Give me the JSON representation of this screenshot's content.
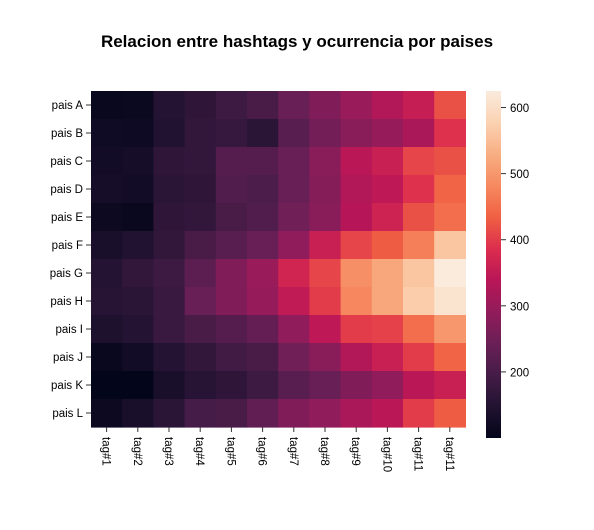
{
  "chart_data": {
    "type": "heatmap",
    "title": "Relacion entre hashtags y ocurrencia por paises",
    "rows": [
      "pais A",
      "pais B",
      "pais C",
      "pais D",
      "pais E",
      "pais F",
      "pais G",
      "pais H",
      "pais I",
      "pais J",
      "pais K",
      "pais L"
    ],
    "columns": [
      "tag#1",
      "tag#2",
      "tag#3",
      "tag#4",
      "tag#5",
      "tag#6",
      "tag#7",
      "tag#8",
      "tag#9",
      "tag#10",
      "tag#11",
      "tag#11"
    ],
    "values": [
      [
        110,
        112,
        150,
        165,
        185,
        200,
        240,
        270,
        300,
        330,
        355,
        420
      ],
      [
        120,
        118,
        145,
        170,
        175,
        160,
        220,
        255,
        280,
        295,
        320,
        390
      ],
      [
        125,
        130,
        165,
        170,
        215,
        215,
        240,
        280,
        340,
        360,
        410,
        420
      ],
      [
        130,
        125,
        160,
        165,
        210,
        205,
        240,
        275,
        330,
        345,
        390,
        440
      ],
      [
        115,
        110,
        165,
        170,
        200,
        210,
        250,
        280,
        335,
        365,
        420,
        450
      ],
      [
        135,
        145,
        170,
        200,
        220,
        240,
        290,
        360,
        410,
        430,
        470,
        560
      ],
      [
        150,
        170,
        185,
        225,
        270,
        300,
        370,
        410,
        490,
        520,
        560,
        625
      ],
      [
        155,
        160,
        180,
        240,
        270,
        295,
        350,
        400,
        480,
        520,
        570,
        610
      ],
      [
        140,
        150,
        180,
        200,
        215,
        235,
        290,
        345,
        400,
        405,
        450,
        500
      ],
      [
        110,
        125,
        150,
        170,
        190,
        200,
        250,
        280,
        330,
        360,
        400,
        440
      ],
      [
        100,
        100,
        135,
        155,
        165,
        185,
        220,
        240,
        270,
        290,
        340,
        360
      ],
      [
        115,
        135,
        160,
        195,
        200,
        230,
        270,
        290,
        320,
        340,
        400,
        430
      ]
    ],
    "colorbar": {
      "ticks": [
        200,
        300,
        400,
        500,
        600
      ],
      "range": [
        100,
        625
      ]
    },
    "colormap": [
      "#03051a",
      "#221331",
      "#451c47",
      "#6a1f56",
      "#921c5b",
      "#b91657",
      "#dc2d4e",
      "#f06043",
      "#f6895f",
      "#f8ae83",
      "#fbd2b2",
      "#faebdd"
    ]
  }
}
